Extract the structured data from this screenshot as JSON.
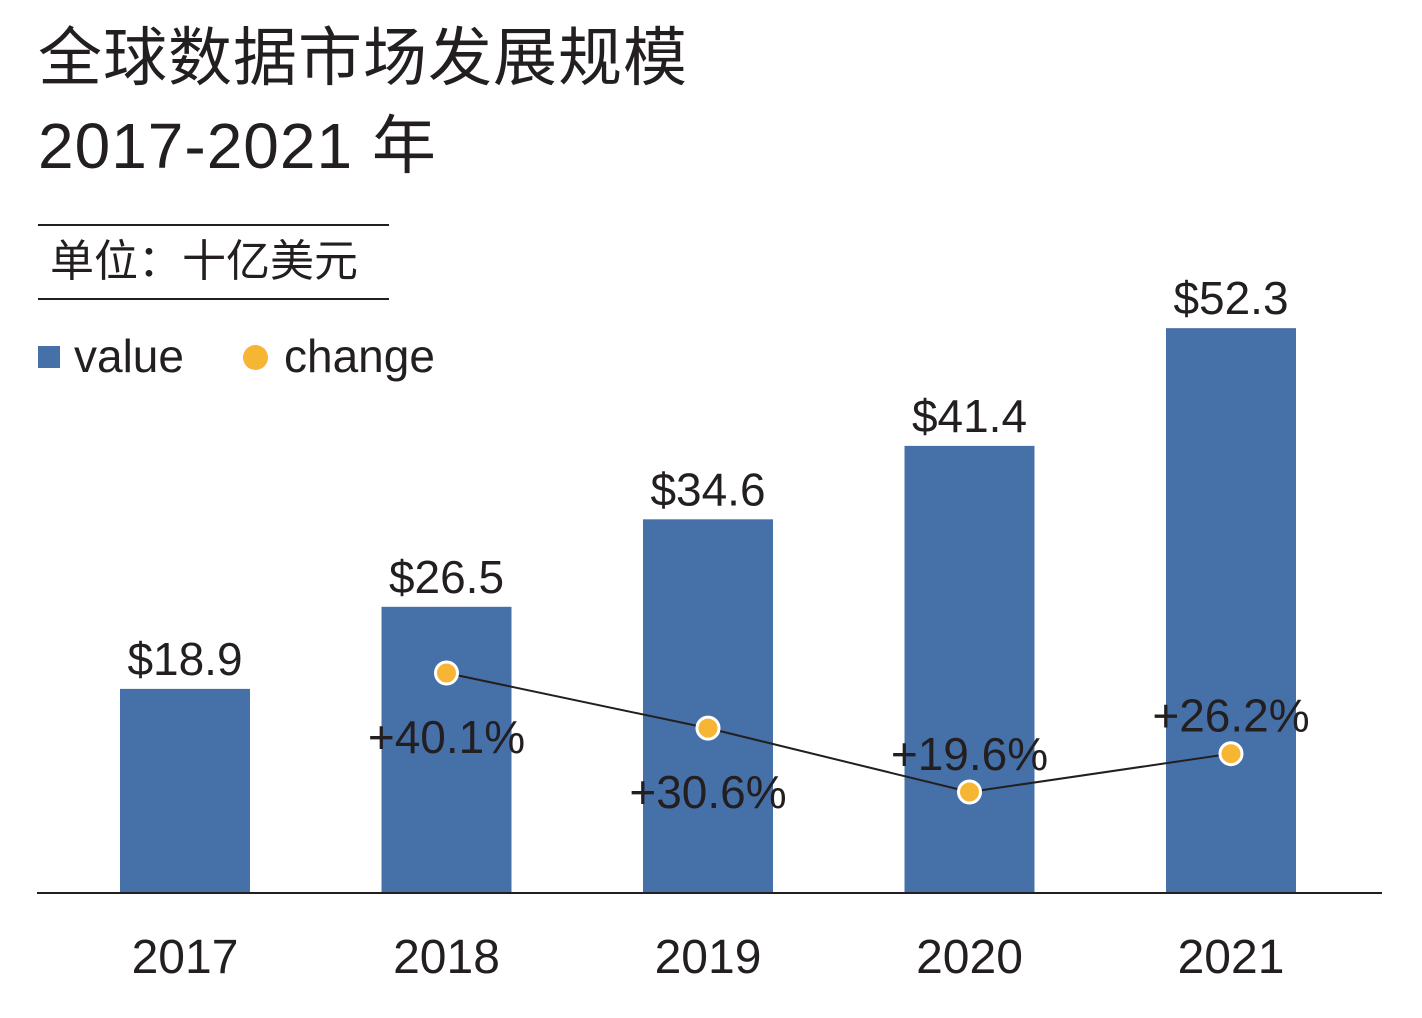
{
  "header": {
    "title": "全球数据市场发展规模",
    "subtitle": "2017-2021 年",
    "unit": "单位：十亿美元"
  },
  "legend": {
    "value_label": "value",
    "change_label": "change"
  },
  "colors": {
    "bar": "#4670a8",
    "marker": "#f7b534",
    "line": "#231f20",
    "text": "#231f20"
  },
  "chart_data": {
    "type": "bar",
    "categories": [
      "2017",
      "2018",
      "2019",
      "2020",
      "2021"
    ],
    "series": [
      {
        "name": "value",
        "type": "bar",
        "values": [
          18.9,
          26.5,
          34.6,
          41.4,
          52.3
        ],
        "labels": [
          "$18.9",
          "$26.5",
          "$34.6",
          "$41.4",
          "$52.3"
        ]
      },
      {
        "name": "change",
        "type": "line",
        "values": [
          null,
          40.1,
          30.6,
          19.6,
          26.2
        ],
        "labels": [
          "",
          "+40.1%",
          "+30.6%",
          "+19.6%",
          "+26.2%"
        ]
      }
    ],
    "ylim": [
      0,
      60
    ],
    "legend_position": "top-left",
    "grid": false
  }
}
